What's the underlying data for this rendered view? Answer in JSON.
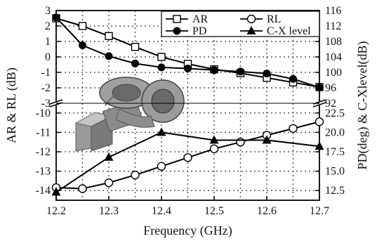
{
  "chart_data": {
    "type": "line",
    "xlabel": "Frequency (GHz)",
    "ylabel_left": "AR & RL (dB)",
    "ylabel_right": "PD(deg) & C-Xlevel(dB)",
    "x_range": [
      12.2,
      12.7
    ],
    "x_ticks": [
      "12.2",
      "12.3",
      "12.4",
      "12.5",
      "12.6",
      "12.7"
    ],
    "grid": true,
    "legend_position": "top-right",
    "y_axis_break": true,
    "left_axis": {
      "upper_panel": {
        "range": [
          -3,
          3
        ],
        "ticks": [
          "3",
          "2",
          "1",
          "0",
          "-1",
          "-2",
          "-3"
        ]
      },
      "lower_panel": {
        "range": [
          -14.5,
          -9.5
        ],
        "ticks": [
          "-10",
          "-11",
          "-12",
          "-13",
          "-14"
        ]
      }
    },
    "right_axis": {
      "upper_panel": {
        "range": [
          92,
          116
        ],
        "ticks": [
          "116",
          "112",
          "108",
          "104",
          "100",
          "96",
          "92"
        ]
      },
      "lower_panel": {
        "range": [
          11.25,
          23.75
        ],
        "ticks": [
          "22.5",
          "20.0",
          "17.5",
          "15.0",
          "12.5"
        ]
      }
    },
    "series": [
      {
        "name": "AR",
        "marker": "open-square",
        "axis": "left",
        "panel": "upper",
        "x": [
          12.2,
          12.25,
          12.3,
          12.35,
          12.4,
          12.45,
          12.5,
          12.55,
          12.6,
          12.65,
          12.7
        ],
        "y": [
          2.5,
          2.0,
          1.35,
          0.65,
          0.0,
          -0.45,
          -0.8,
          -1.05,
          -1.35,
          -1.65,
          -1.95
        ]
      },
      {
        "name": "PD",
        "marker": "filled-circle",
        "axis": "right",
        "panel": "upper",
        "x": [
          12.2,
          12.25,
          12.3,
          12.35,
          12.4,
          12.45,
          12.5,
          12.55,
          12.6,
          12.65,
          12.7
        ],
        "y": [
          114.2,
          107.0,
          104.2,
          102.3,
          101.3,
          101.0,
          100.6,
          100.2,
          99.7,
          98.3,
          96.1
        ]
      },
      {
        "name": "RL",
        "marker": "open-circle",
        "axis": "left",
        "panel": "lower",
        "x": [
          12.2,
          12.25,
          12.3,
          12.35,
          12.4,
          12.45,
          12.5,
          12.55,
          12.6,
          12.65,
          12.7
        ],
        "y": [
          -13.85,
          -13.9,
          -13.6,
          -13.2,
          -12.75,
          -12.3,
          -11.85,
          -11.5,
          -11.15,
          -10.8,
          -10.45
        ]
      },
      {
        "name": "C-X level",
        "marker": "filled-triangle",
        "axis": "right",
        "panel": "lower",
        "x": [
          12.2,
          12.3,
          12.4,
          12.5,
          12.6,
          12.7
        ],
        "y": [
          12.3,
          16.8,
          20.0,
          19.0,
          19.0,
          18.2
        ]
      }
    ]
  },
  "inset": {
    "description_icon": "waveguide-3d-model-icon"
  },
  "colors": {
    "line": "#000000",
    "grid": "#555555",
    "axis": "#000000",
    "inset_body": "#8a8a8a"
  }
}
